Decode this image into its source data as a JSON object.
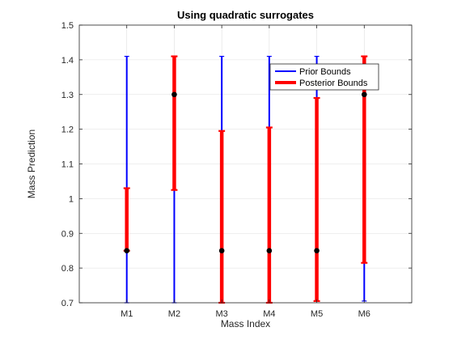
{
  "chart_data": {
    "type": "errorbar",
    "title": "Using quadratic surrogates",
    "xlabel": "Mass Index",
    "ylabel": "Mass Prediction",
    "ylim": [
      0.7,
      1.5
    ],
    "yticks": [
      0.7,
      0.8,
      0.9,
      1.0,
      1.1,
      1.2,
      1.3,
      1.4,
      1.5
    ],
    "ytick_labels": [
      "0.7",
      "0.8",
      "0.9",
      "1",
      "1.1",
      "1.2",
      "1.3",
      "1.4",
      "1.5"
    ],
    "xlim": [
      0,
      7
    ],
    "categories": [
      "M1",
      "M2",
      "M3",
      "M4",
      "M5",
      "M6"
    ],
    "grid": true,
    "legend_placement": "top-right",
    "series": [
      {
        "name": "Prior Bounds",
        "color": "#0000ff",
        "lower": [
          0.7,
          0.7,
          0.7,
          0.7,
          0.705,
          0.705
        ],
        "upper": [
          1.41,
          1.41,
          1.41,
          1.41,
          1.41,
          1.41
        ]
      },
      {
        "name": "Posterior Bounds",
        "color": "#ff0000",
        "lower": [
          0.85,
          1.025,
          0.7,
          0.7,
          0.705,
          0.815
        ],
        "upper": [
          1.03,
          1.41,
          1.195,
          1.205,
          1.29,
          1.41
        ]
      }
    ],
    "points": {
      "color": "#000000",
      "values": [
        0.85,
        1.3,
        0.85,
        0.85,
        0.85,
        1.3
      ]
    }
  }
}
